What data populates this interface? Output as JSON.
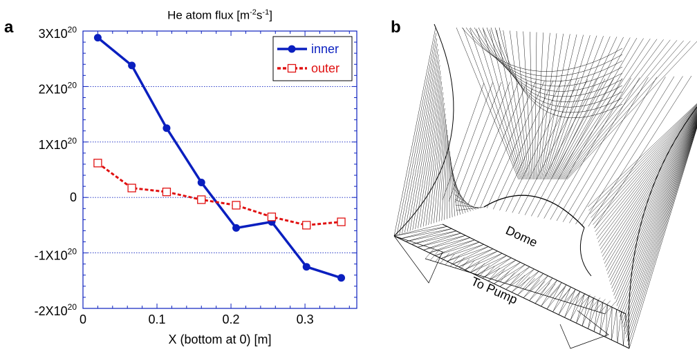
{
  "panel_labels": {
    "a": "a",
    "b": "b"
  },
  "chart_data": {
    "type": "line",
    "title": "He atom flux [m^-2 s^-1]",
    "title_parts": {
      "main": "He atom flux [m",
      "sup1": "-2",
      "mid": "s",
      "sup2": "-1",
      "end": "]"
    },
    "xlabel": "X (bottom at 0) [m]",
    "ylabel": "",
    "xlim": [
      0,
      0.37
    ],
    "ylim": [
      -2e+20,
      3e+20
    ],
    "x_ticks": [
      {
        "value": 0,
        "label": "0"
      },
      {
        "value": 0.1,
        "label": "0.1"
      },
      {
        "value": 0.2,
        "label": "0.2"
      },
      {
        "value": 0.3,
        "label": "0.3"
      }
    ],
    "y_ticks": [
      {
        "value": 3e+20,
        "mant": "3X10",
        "exp": "20"
      },
      {
        "value": 2e+20,
        "mant": "2X10",
        "exp": "20"
      },
      {
        "value": 1e+20,
        "mant": "1X10",
        "exp": "20"
      },
      {
        "value": 0,
        "mant": "0",
        "exp": ""
      },
      {
        "value": -1e+20,
        "mant": "-1X10",
        "exp": "20"
      },
      {
        "value": -2e+20,
        "mant": "-2X10",
        "exp": "20"
      }
    ],
    "grid": "horizontal dotted lines at major y ticks",
    "legend_position": "top-right",
    "series": [
      {
        "name": "inner",
        "color": "#0a1fbf",
        "marker": "filled-circle",
        "line_style": "solid",
        "x": [
          0.02,
          0.066,
          0.113,
          0.16,
          0.207,
          0.255,
          0.302,
          0.349
        ],
        "y": [
          2.88e+20,
          2.38e+20,
          1.25e+20,
          2.7e+19,
          -5.5e+19,
          -4.4e+19,
          -1.25e+20,
          -1.45e+20
        ]
      },
      {
        "name": "outer",
        "color": "#e01010",
        "marker": "open-square",
        "line_style": "dashed",
        "x": [
          0.02,
          0.066,
          0.113,
          0.16,
          0.207,
          0.255,
          0.302,
          0.349
        ],
        "y": [
          6.2e+19,
          1.7e+19,
          1e+19,
          -4e+18,
          -1.4e+19,
          -3.5e+19,
          -5e+19,
          -4.4e+19
        ]
      }
    ]
  },
  "mesh_panel": {
    "labels": {
      "dome": "Dome",
      "pump": "To Pump"
    },
    "line_color": "#000000"
  }
}
